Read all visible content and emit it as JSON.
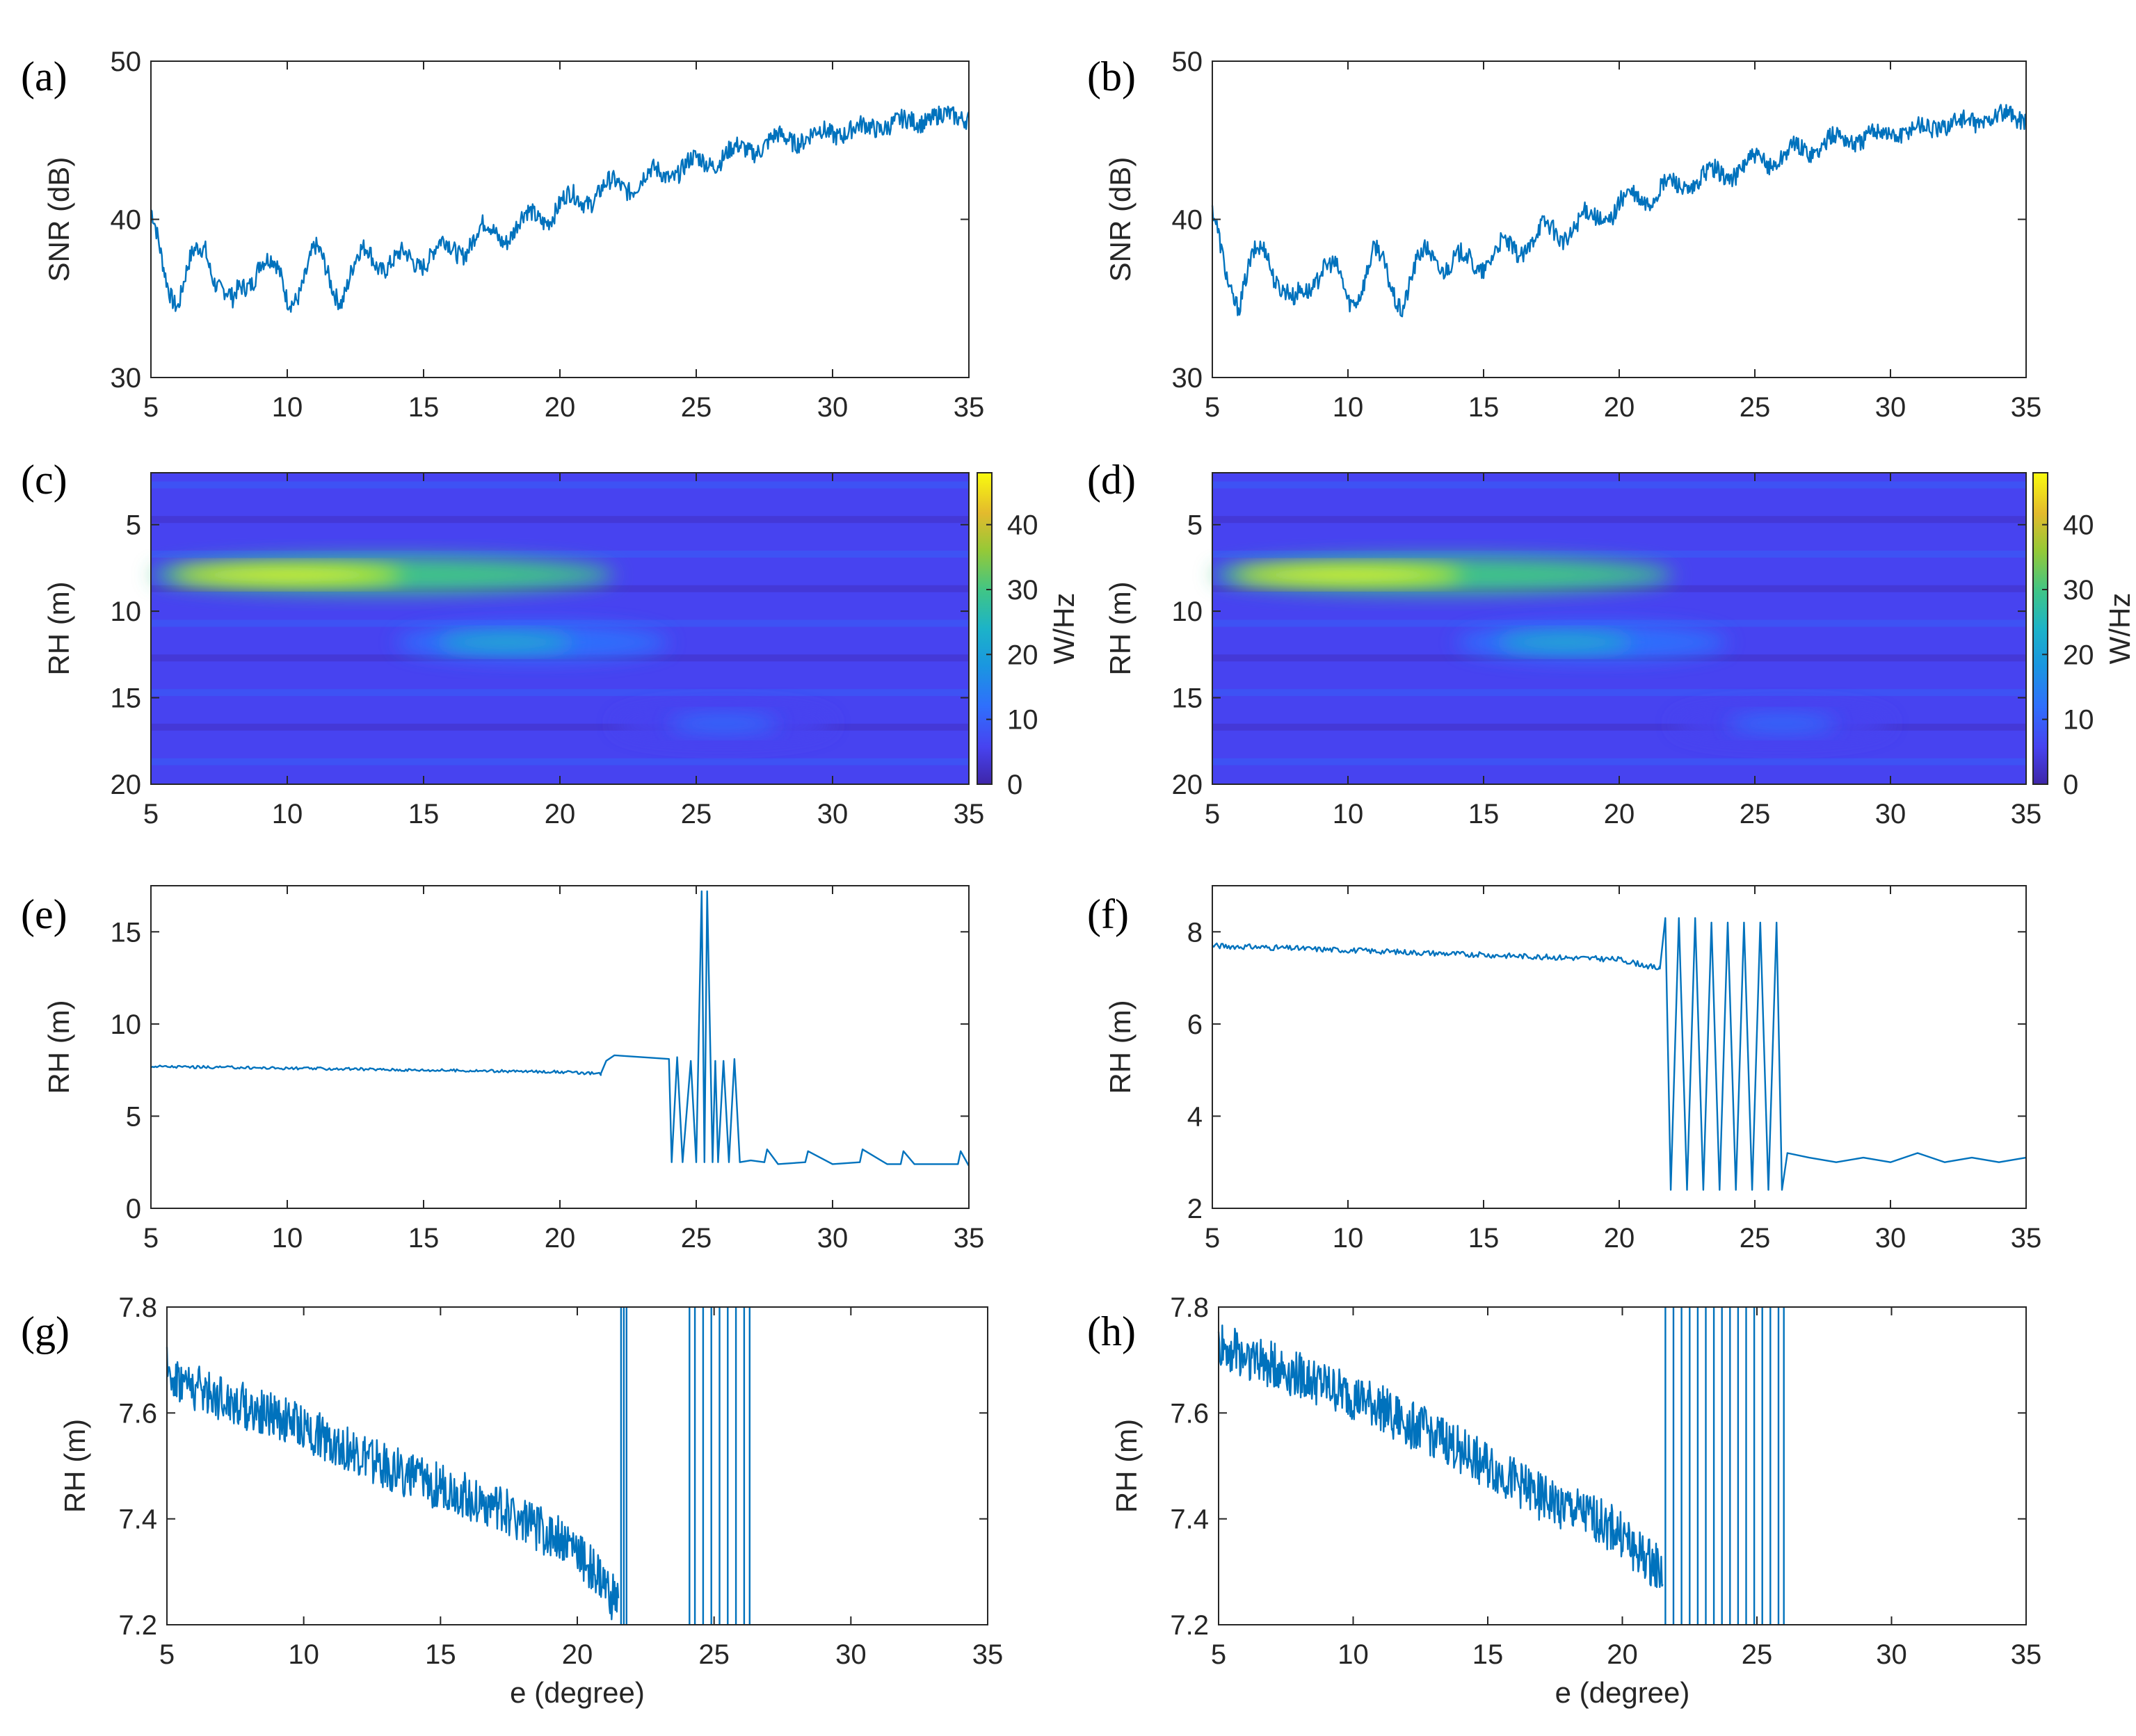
{
  "figure": {
    "series_color": "#0072BD",
    "colormap": [
      "#3E26A8",
      "#4743F0",
      "#2F6FFC",
      "#1A96E0",
      "#1CB3C8",
      "#3FC587",
      "#95C937",
      "#E3BA2D",
      "#FBDE1C",
      "#F9FB0E"
    ],
    "colorbar_label": "W/Hz",
    "colorbar_ticks": [
      "0",
      "10",
      "20",
      "30",
      "40"
    ]
  },
  "chart_data": [
    {
      "id": "a",
      "panel_letter": "(a)",
      "type": "line",
      "ylabel": "SNR (dB)",
      "xlabel": "",
      "xlim": [
        5,
        35
      ],
      "ylim": [
        30,
        50
      ],
      "x_ticks": [
        "5",
        "10",
        "15",
        "20",
        "25",
        "30",
        "35"
      ],
      "y_ticks": [
        "30",
        "40",
        "50"
      ],
      "x": [
        5,
        6,
        7,
        8,
        9,
        10,
        11,
        12,
        13,
        14,
        15,
        16,
        17,
        18,
        19,
        20,
        21,
        22,
        23,
        24,
        25,
        26,
        27,
        28,
        29,
        30,
        31,
        32,
        33,
        34,
        35
      ],
      "values": [
        39.5,
        35,
        38.5,
        34,
        38,
        35,
        37.5,
        35.5,
        38,
        37,
        37.8,
        38,
        39,
        39.2,
        40,
        40.8,
        41.5,
        42,
        42.5,
        43,
        43.5,
        44,
        44.5,
        45,
        45.2,
        45.5,
        45.7,
        46,
        46.2,
        46.5,
        46.5
      ]
    },
    {
      "id": "b",
      "panel_letter": "(b)",
      "type": "line",
      "ylabel": "SNR (dB)",
      "xlabel": "",
      "xlim": [
        5,
        35
      ],
      "ylim": [
        30,
        50
      ],
      "x_ticks": [
        "5",
        "10",
        "15",
        "20",
        "25",
        "30",
        "35"
      ],
      "y_ticks": [
        "30",
        "40",
        "50"
      ],
      "x": [
        5,
        6,
        7,
        8,
        9,
        10,
        11,
        12,
        13,
        14,
        15,
        16,
        17,
        18,
        19,
        20,
        21,
        22,
        23,
        24,
        25,
        26,
        27,
        28,
        29,
        30,
        31,
        32,
        33,
        34,
        35
      ],
      "values": [
        39.5,
        35,
        38.5,
        34,
        37.5,
        35,
        37.5,
        35,
        38,
        37,
        37.5,
        38,
        39,
        39.3,
        40,
        40.8,
        41.5,
        42,
        42.5,
        43,
        43.5,
        44,
        44.5,
        45,
        45.2,
        45.5,
        45.7,
        46,
        46.2,
        46.5,
        46.5
      ]
    },
    {
      "id": "c",
      "panel_letter": "(c)",
      "type": "heatmap",
      "ylabel": "RH (m)",
      "xlabel": "",
      "xlim": [
        5,
        35
      ],
      "ylim": [
        20,
        2
      ],
      "x_ticks": [
        "5",
        "10",
        "15",
        "20",
        "25",
        "30",
        "35"
      ],
      "y_ticks": [
        "5",
        "10",
        "15",
        "20"
      ],
      "zlim": [
        0,
        48
      ],
      "hotspots": [
        {
          "x_start": 5,
          "x_end": 22,
          "rh": 7.9,
          "peak_at": 10,
          "peak": 46
        },
        {
          "x_start": 14,
          "x_end": 24,
          "rh": 11.8,
          "peak_at": 18,
          "peak": 20
        },
        {
          "x_start": 22,
          "x_end": 30,
          "rh": 16.5,
          "peak_at": 26,
          "peak": 12
        }
      ]
    },
    {
      "id": "d",
      "panel_letter": "(d)",
      "type": "heatmap",
      "ylabel": "RH (m)",
      "xlabel": "",
      "xlim": [
        5,
        35
      ],
      "ylim": [
        20,
        2
      ],
      "x_ticks": [
        "5",
        "10",
        "15",
        "20",
        "25",
        "30",
        "35"
      ],
      "y_ticks": [
        "5",
        "10",
        "15",
        "20"
      ],
      "zlim": [
        0,
        48
      ],
      "hotspots": [
        {
          "x_start": 5,
          "x_end": 22,
          "rh": 7.9,
          "peak_at": 10,
          "peak": 46
        },
        {
          "x_start": 14,
          "x_end": 24,
          "rh": 11.8,
          "peak_at": 18,
          "peak": 20
        },
        {
          "x_start": 22,
          "x_end": 30,
          "rh": 16.5,
          "peak_at": 26,
          "peak": 12
        }
      ]
    },
    {
      "id": "e",
      "panel_letter": "(e)",
      "type": "line",
      "ylabel": "RH (m)",
      "xlabel": "",
      "xlim": [
        5,
        35
      ],
      "ylim": [
        0,
        17.5
      ],
      "x_ticks": [
        "5",
        "10",
        "15",
        "20",
        "25",
        "30",
        "35"
      ],
      "y_ticks": [
        "0",
        "5",
        "10",
        "15"
      ],
      "x": [
        5,
        10,
        15,
        20,
        21.5,
        21.7,
        22,
        23,
        24,
        24.1,
        24.3,
        24.5,
        24.8,
        25,
        25.2,
        25.3,
        25.4,
        25.6,
        25.7,
        25.8,
        26,
        26.2,
        26.4,
        26.6,
        27,
        27.5,
        27.6,
        28,
        29,
        29.1,
        30,
        31,
        31.1,
        32,
        32.5,
        32.6,
        33,
        34,
        34.6,
        34.7,
        35
      ],
      "values": [
        7.7,
        7.6,
        7.5,
        7.4,
        7.3,
        8,
        8.3,
        8.2,
        8.1,
        2.5,
        8.2,
        2.5,
        8,
        2.5,
        17.2,
        2.5,
        17.2,
        2.5,
        8,
        2.5,
        8,
        2.5,
        8.1,
        2.5,
        2.6,
        2.5,
        3.2,
        2.4,
        2.5,
        3.1,
        2.4,
        2.5,
        3.2,
        2.4,
        2.4,
        3.1,
        2.4,
        2.4,
        2.4,
        3.1,
        2.3
      ]
    },
    {
      "id": "f",
      "panel_letter": "(f)",
      "type": "line",
      "ylabel": "RH (m)",
      "xlabel": "",
      "xlim": [
        5,
        35
      ],
      "ylim": [
        2,
        9
      ],
      "x_ticks": [
        "5",
        "10",
        "15",
        "20",
        "25",
        "30",
        "35"
      ],
      "y_ticks": [
        "2",
        "4",
        "6",
        "8"
      ],
      "x": [
        5,
        10,
        15,
        20,
        21.5,
        21.7,
        21.9,
        22.2,
        22.5,
        22.8,
        23.1,
        23.4,
        23.7,
        24,
        24.3,
        24.6,
        24.9,
        25.2,
        25.5,
        25.8,
        26,
        26.2,
        27,
        28,
        29,
        30,
        31,
        32,
        33,
        34,
        35
      ],
      "values": [
        7.7,
        7.6,
        7.5,
        7.4,
        7.2,
        8.3,
        2.4,
        8.3,
        2.4,
        8.3,
        2.4,
        8.2,
        2.4,
        8.2,
        2.4,
        8.2,
        2.4,
        8.2,
        2.4,
        8.2,
        2.4,
        3.2,
        3.1,
        3.0,
        3.1,
        3.0,
        3.2,
        3.0,
        3.1,
        3.0,
        3.1
      ]
    },
    {
      "id": "g",
      "panel_letter": "(g)",
      "type": "line",
      "ylabel": "RH (m)",
      "xlabel": "e (degree)",
      "xlim": [
        5,
        35
      ],
      "ylim": [
        7.2,
        7.8
      ],
      "x_ticks": [
        "5",
        "10",
        "15",
        "20",
        "25",
        "30",
        "35"
      ],
      "y_ticks": [
        "7.2",
        "7.4",
        "7.6",
        "7.8"
      ],
      "x": [
        5,
        6,
        7,
        8,
        9,
        10,
        11,
        12,
        13,
        14,
        15,
        16,
        17,
        18,
        19,
        20,
        20.5,
        21,
        21.5
      ],
      "values": [
        7.68,
        7.65,
        7.63,
        7.61,
        7.59,
        7.57,
        7.55,
        7.52,
        7.5,
        7.48,
        7.46,
        7.44,
        7.42,
        7.4,
        7.37,
        7.34,
        7.31,
        7.27,
        7.24
      ]
    },
    {
      "id": "h",
      "panel_letter": "(h)",
      "type": "line",
      "ylabel": "RH (m)",
      "xlabel": "e (degree)",
      "xlim": [
        5,
        35
      ],
      "ylim": [
        7.2,
        7.8
      ],
      "x_ticks": [
        "5",
        "10",
        "15",
        "20",
        "25",
        "30",
        "35"
      ],
      "y_ticks": [
        "7.2",
        "7.4",
        "7.6",
        "7.8"
      ],
      "x": [
        5,
        6,
        7,
        8,
        9,
        10,
        11,
        12,
        13,
        14,
        15,
        16,
        17,
        18,
        19,
        20,
        20.5,
        21,
        21.5
      ],
      "values": [
        7.73,
        7.71,
        7.69,
        7.67,
        7.65,
        7.63,
        7.61,
        7.58,
        7.56,
        7.53,
        7.5,
        7.47,
        7.44,
        7.42,
        7.4,
        7.37,
        7.34,
        7.32,
        7.3
      ]
    }
  ]
}
